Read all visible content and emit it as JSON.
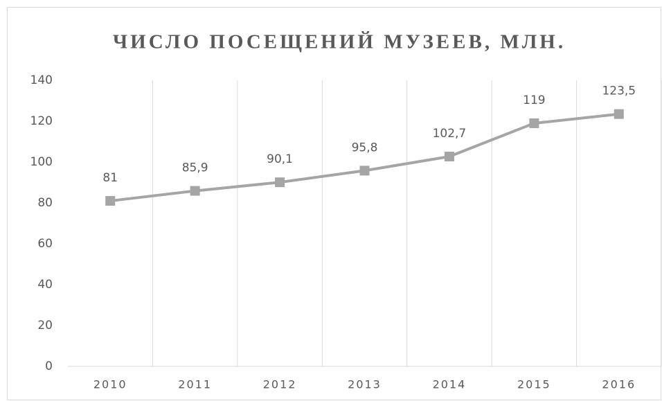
{
  "chart_data": {
    "type": "line",
    "title": "ЧИСЛО ПОСЕЩЕНИЙ МУЗЕЕВ, МЛН.",
    "categories": [
      "2010",
      "2011",
      "2012",
      "2013",
      "2014",
      "2015",
      "2016"
    ],
    "values": [
      81,
      85.9,
      90.1,
      95.8,
      102.7,
      119,
      123.5
    ],
    "value_labels": [
      "81",
      "85,9",
      "90,1",
      "95,8",
      "102,7",
      "119",
      "123,5"
    ],
    "color": "#a5a5a5",
    "ylim": [
      0,
      140
    ],
    "yticks": [
      0,
      20,
      40,
      60,
      80,
      100,
      120,
      140
    ],
    "xgrid": true
  }
}
